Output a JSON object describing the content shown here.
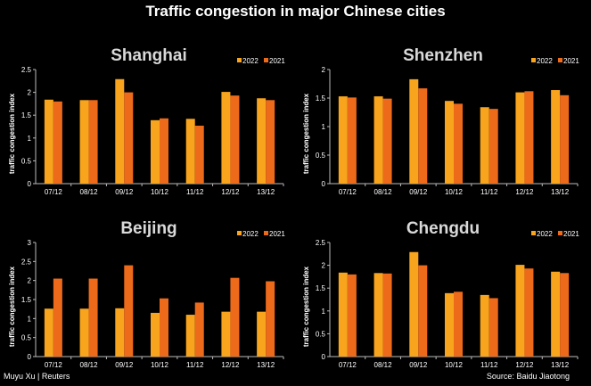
{
  "title": "Traffic congestion in major Chinese cities",
  "footer": {
    "credit": "Muyu Xu | Reuters",
    "source": "Source: Baidu Jiaotong"
  },
  "colors": {
    "series_2022": "#F8A51D",
    "series_2021": "#EE6A1B",
    "background": "#000000",
    "text": "#FFFFFF",
    "axis": "#BBBBBB"
  },
  "chart_data": [
    {
      "type": "bar",
      "title": "Shanghai",
      "xlabel": "",
      "ylabel": "traffic congestion index",
      "ylim": [
        0,
        2.5
      ],
      "yticks": [
        "0",
        "0.5",
        "1",
        "1.5",
        "2",
        "2.5"
      ],
      "legend_position": "top-right",
      "categories": [
        "07/12",
        "08/12",
        "09/12",
        "10/12",
        "11/12",
        "12/12",
        "13/12"
      ],
      "series": [
        {
          "name": "2022",
          "values": [
            1.84,
            1.83,
            2.29,
            1.39,
            1.42,
            2.01,
            1.87
          ]
        },
        {
          "name": "2021",
          "values": [
            1.8,
            1.83,
            2.0,
            1.43,
            1.27,
            1.93,
            1.83
          ]
        }
      ]
    },
    {
      "type": "bar",
      "title": "Shenzhen",
      "xlabel": "",
      "ylabel": "traffic congestion index",
      "ylim": [
        0,
        2
      ],
      "yticks": [
        "0",
        "0.5",
        "1",
        "1.5",
        "2"
      ],
      "legend_position": "top-right",
      "categories": [
        "07/12",
        "08/12",
        "09/12",
        "10/12",
        "11/12",
        "12/12",
        "13/12"
      ],
      "series": [
        {
          "name": "2022",
          "values": [
            1.53,
            1.53,
            1.83,
            1.45,
            1.34,
            1.6,
            1.64
          ]
        },
        {
          "name": "2021",
          "values": [
            1.51,
            1.49,
            1.67,
            1.4,
            1.31,
            1.62,
            1.55
          ]
        }
      ]
    },
    {
      "type": "bar",
      "title": "Beijing",
      "xlabel": "",
      "ylabel": "traffic congestion index",
      "ylim": [
        0,
        3
      ],
      "yticks": [
        "0",
        "0.5",
        "1",
        "1.5",
        "2",
        "2.5",
        "3"
      ],
      "legend_position": "top-right",
      "categories": [
        "07/12",
        "08/12",
        "09/12",
        "10/12",
        "11/12",
        "12/12",
        "13/12"
      ],
      "series": [
        {
          "name": "2022",
          "values": [
            1.26,
            1.26,
            1.27,
            1.15,
            1.1,
            1.18,
            1.18
          ]
        },
        {
          "name": "2021",
          "values": [
            2.05,
            2.05,
            2.4,
            1.53,
            1.42,
            2.07,
            1.98
          ]
        }
      ]
    },
    {
      "type": "bar",
      "title": "Chengdu",
      "xlabel": "",
      "ylabel": "traffic congestion index",
      "ylim": [
        0,
        2.5
      ],
      "yticks": [
        "0",
        "0.5",
        "1",
        "1.5",
        "2",
        "2.5"
      ],
      "legend_position": "top-right",
      "categories": [
        "07/12",
        "08/12",
        "09/12",
        "10/12",
        "11/12",
        "12/12",
        "13/12"
      ],
      "series": [
        {
          "name": "2022",
          "values": [
            1.84,
            1.83,
            2.29,
            1.39,
            1.35,
            2.01,
            1.86
          ]
        },
        {
          "name": "2021",
          "values": [
            1.8,
            1.82,
            2.0,
            1.42,
            1.28,
            1.93,
            1.83
          ]
        }
      ]
    }
  ]
}
